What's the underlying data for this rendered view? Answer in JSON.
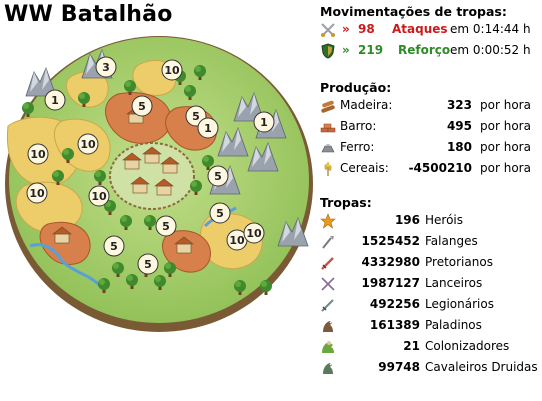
{
  "village": {
    "name": "WW Batalhão"
  },
  "map": {
    "fields": [
      {
        "id": "f1",
        "level": "3"
      },
      {
        "id": "f2",
        "level": "10"
      },
      {
        "id": "f3",
        "level": "1"
      },
      {
        "id": "f4",
        "level": "5"
      },
      {
        "id": "f5",
        "level": "5"
      },
      {
        "id": "f6",
        "level": "1"
      },
      {
        "id": "f7",
        "level": "10"
      },
      {
        "id": "f8",
        "level": "10"
      },
      {
        "id": "f9",
        "level": "5"
      },
      {
        "id": "f10",
        "level": "10"
      },
      {
        "id": "f11",
        "level": "10"
      },
      {
        "id": "f12",
        "level": "1"
      },
      {
        "id": "f13",
        "level": "5"
      },
      {
        "id": "f14",
        "level": "5"
      },
      {
        "id": "f15",
        "level": "5"
      },
      {
        "id": "f16",
        "level": "5"
      },
      {
        "id": "f17",
        "level": "10"
      },
      {
        "id": "f18",
        "level": "10"
      }
    ]
  },
  "movements": {
    "title": "Movimentações de tropas:",
    "items": [
      {
        "arrow": "»",
        "count": "98",
        "label": "Ataques",
        "prep": "em",
        "time": "0:14:44 h",
        "color": "#cc1a1a"
      },
      {
        "arrow": "»",
        "count": "219",
        "label": "Reforço",
        "prep": "em",
        "time": "0:00:52 h",
        "color": "#2f8a2a"
      }
    ]
  },
  "production": {
    "title": "Produção:",
    "items": [
      {
        "icon": "wood-icon",
        "name": "Madeira:",
        "value": "323",
        "unit": "por hora"
      },
      {
        "icon": "clay-icon",
        "name": "Barro:",
        "value": "495",
        "unit": "por hora"
      },
      {
        "icon": "iron-icon",
        "name": "Ferro:",
        "value": "180",
        "unit": "por hora"
      },
      {
        "icon": "crop-icon",
        "name": "Cereais:",
        "value": "-4500210",
        "unit": "por hora"
      }
    ]
  },
  "troops": {
    "title": "Tropas:",
    "items": [
      {
        "icon": "hero-icon",
        "count": "196",
        "name": "Heróis"
      },
      {
        "icon": "phalanx-icon",
        "count": "1525452",
        "name": "Falanges"
      },
      {
        "icon": "praetorian-icon",
        "count": "4332980",
        "name": "Pretorianos"
      },
      {
        "icon": "lancer-icon",
        "count": "1987127",
        "name": "Lanceiros"
      },
      {
        "icon": "legionnaire-icon",
        "count": "492256",
        "name": "Legionários"
      },
      {
        "icon": "paladin-icon",
        "count": "161389",
        "name": "Paladinos"
      },
      {
        "icon": "settler-icon",
        "count": "21",
        "name": "Colonizadores"
      },
      {
        "icon": "druid-rider-icon",
        "count": "99748",
        "name": "Cavaleiros Druidas"
      }
    ]
  },
  "colors": {
    "attack": "#cc1a1a",
    "reinforce": "#2f8a2a",
    "wheat": "#eccd6a",
    "grass": "#a9cf6a",
    "clay": "#d8804c"
  }
}
